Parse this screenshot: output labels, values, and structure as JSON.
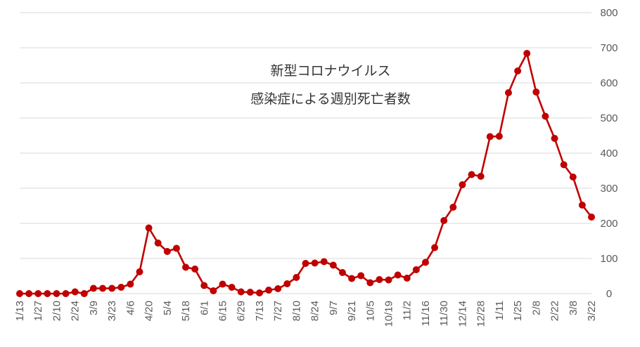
{
  "chart_data": {
    "type": "line",
    "title": "新型コロナウイルス",
    "subtitle": "感染症による週別死亡者数",
    "xlabel": "",
    "ylabel": "",
    "ylim": [
      0,
      800
    ],
    "yticks": [
      0,
      100,
      200,
      300,
      400,
      500,
      600,
      700,
      800
    ],
    "y_axis_position": "right",
    "grid": true,
    "legend": "none",
    "colors": {
      "line": "#c00000",
      "marker": "#c00000",
      "grid": "#d9d9d9",
      "text": "#595959"
    },
    "x": [
      "1/13",
      "1/20",
      "1/27",
      "2/3",
      "2/10",
      "2/17",
      "2/24",
      "3/2",
      "3/9",
      "3/16",
      "3/23",
      "3/30",
      "4/6",
      "4/13",
      "4/20",
      "4/27",
      "5/4",
      "5/11",
      "5/18",
      "5/25",
      "6/1",
      "6/8",
      "6/15",
      "6/22",
      "6/29",
      "7/6",
      "7/13",
      "7/20",
      "7/27",
      "8/3",
      "8/10",
      "8/17",
      "8/24",
      "8/31",
      "9/7",
      "9/14",
      "9/21",
      "9/28",
      "10/5",
      "10/12",
      "10/19",
      "10/26",
      "11/2",
      "11/9",
      "11/16",
      "11/23",
      "11/30",
      "12/7",
      "12/14",
      "12/21",
      "12/28",
      "1/4",
      "1/11",
      "1/18",
      "1/25",
      "2/1",
      "2/8",
      "2/15",
      "2/22",
      "3/1",
      "3/8",
      "3/15",
      "3/22"
    ],
    "x_tick_labels": [
      "1/13",
      "1/27",
      "2/10",
      "2/24",
      "3/9",
      "3/23",
      "4/6",
      "4/20",
      "5/4",
      "5/18",
      "6/1",
      "6/15",
      "6/29",
      "7/13",
      "7/27",
      "8/10",
      "8/24",
      "9/7",
      "9/21",
      "10/5",
      "10/19",
      "11/2",
      "11/16",
      "11/30",
      "12/14",
      "12/28",
      "1/11",
      "1/25",
      "2/8",
      "2/22",
      "3/8",
      "3/22"
    ],
    "series": [
      {
        "values": [
          0,
          0,
          0,
          0,
          0,
          0,
          5,
          0,
          15,
          15,
          15,
          18,
          27,
          62,
          187,
          144,
          120,
          129,
          75,
          70,
          23,
          8,
          27,
          18,
          5,
          4,
          2,
          10,
          14,
          28,
          46,
          86,
          87,
          91,
          81,
          60,
          43,
          51,
          31,
          40,
          39,
          53,
          44,
          68,
          89,
          131,
          208,
          246,
          310,
          339,
          334,
          447,
          448,
          572,
          634,
          684,
          574,
          505,
          442,
          367,
          332,
          252,
          218
        ]
      }
    ]
  }
}
